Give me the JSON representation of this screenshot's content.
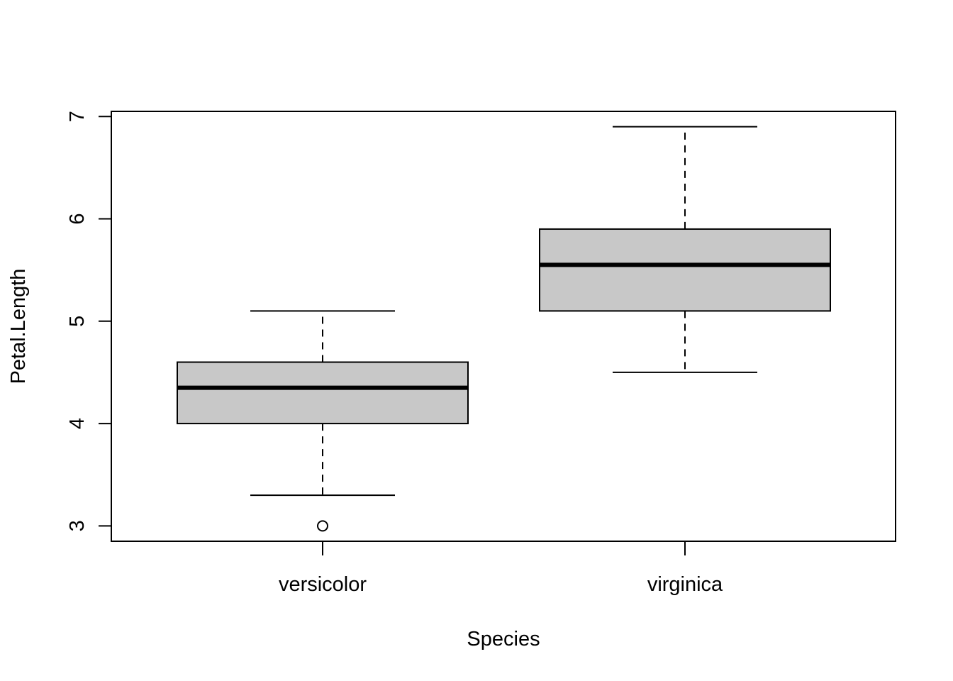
{
  "chart_data": {
    "type": "box",
    "title": "",
    "xlabel": "Species",
    "ylabel": "Petal.Length",
    "categories": [
      "versicolor",
      "virginica"
    ],
    "ylim": [
      2.85,
      7.05
    ],
    "yticks": [
      3,
      4,
      5,
      6,
      7
    ],
    "grid": false,
    "box_fill": "#C8C8C8",
    "line_color": "#000000",
    "boxes": [
      {
        "category": "versicolor",
        "whisker_low": 3.3,
        "q1": 4.0,
        "median": 4.35,
        "q3": 4.6,
        "whisker_high": 5.1,
        "outliers": [
          3.0
        ]
      },
      {
        "category": "virginica",
        "whisker_low": 4.5,
        "q1": 5.1,
        "median": 5.55,
        "q3": 5.9,
        "whisker_high": 6.9,
        "outliers": []
      }
    ]
  }
}
